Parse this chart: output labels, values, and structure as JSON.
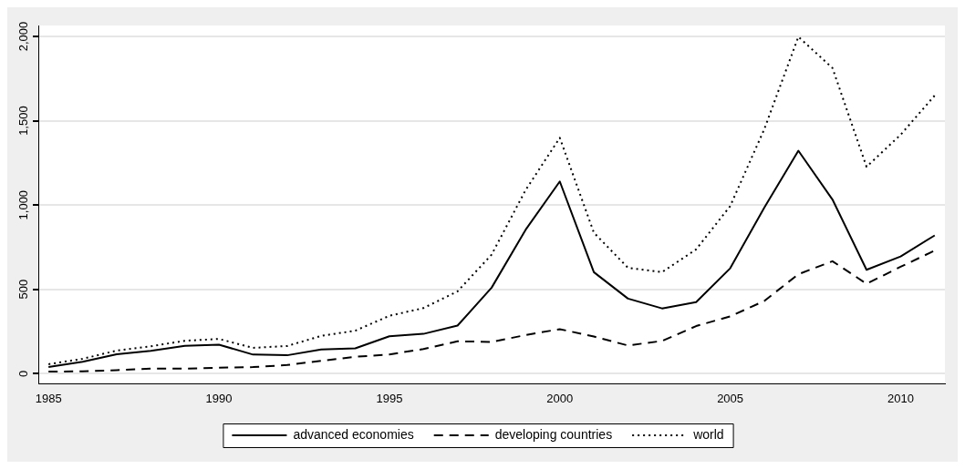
{
  "chart_data": {
    "type": "line",
    "x": [
      1985,
      1986,
      1987,
      1988,
      1989,
      1990,
      1991,
      1992,
      1993,
      1994,
      1995,
      1996,
      1997,
      1998,
      1999,
      2000,
      2001,
      2002,
      2003,
      2004,
      2005,
      2006,
      2007,
      2008,
      2009,
      2010,
      2011
    ],
    "series": [
      {
        "name": "advanced economies",
        "color": "#000000",
        "line_style": "solid",
        "values": [
          40,
          70,
          115,
          135,
          165,
          172,
          113,
          109,
          143,
          150,
          222,
          236,
          285,
          510,
          854,
          1140,
          602,
          445,
          387,
          424,
          625,
          985,
          1322,
          1033,
          616,
          695,
          820
        ]
      },
      {
        "name": "developing countries",
        "color": "#000000",
        "line_style": "dashed",
        "values": [
          12,
          14,
          21,
          30,
          30,
          35,
          39,
          51,
          76,
          100,
          114,
          146,
          192,
          188,
          229,
          264,
          220,
          167,
          194,
          282,
          340,
          431,
          590,
          667,
          533,
          634,
          730
        ]
      },
      {
        "name": "world",
        "color": "#000000",
        "line_style": "dotted",
        "values": [
          56,
          88,
          137,
          162,
          195,
          206,
          153,
          164,
          224,
          255,
          343,
          389,
          488,
          706,
          1090,
          1399,
          836,
          628,
          602,
          737,
          994,
          1450,
          1998,
          1813,
          1227,
          1417,
          1650
        ]
      }
    ],
    "xlim": [
      1984.7,
      2011.3
    ],
    "xticks": [
      1985,
      1990,
      1995,
      2000,
      2005,
      2010
    ],
    "ylim": [
      -60,
      2065
    ],
    "yticks": [
      0,
      500,
      {
        "value": 1000,
        "label": "1,000"
      },
      {
        "value": 1500,
        "label": "1,500"
      },
      {
        "value": 2000,
        "label": "2,000"
      }
    ],
    "grid": "y",
    "legend": "bottom",
    "marker": "none"
  }
}
